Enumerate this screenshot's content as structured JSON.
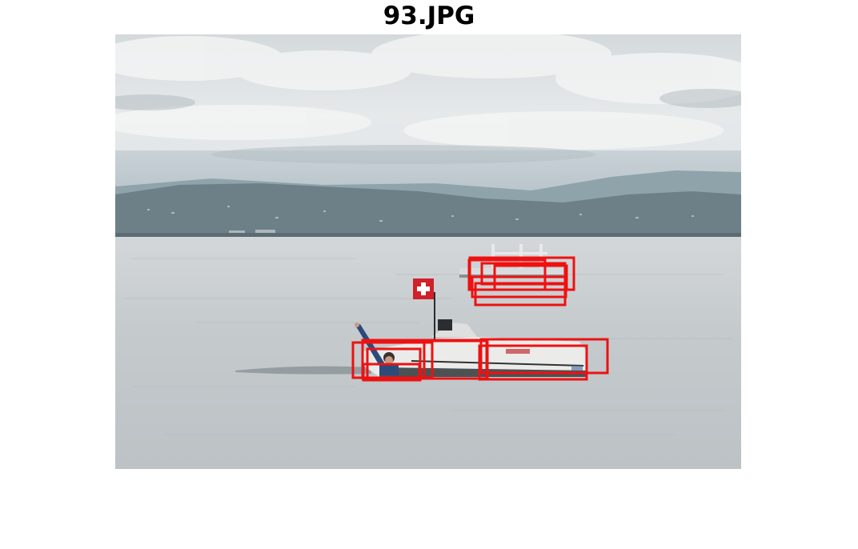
{
  "figure": {
    "title": "93.JPG"
  },
  "image": {
    "description_icon": "lake-boat-photo",
    "colors": {
      "sky": "#dfe3e5",
      "cloud": "#f2f3f3",
      "mountains": "#7f939b",
      "water": "#c8cdd0",
      "boat": "#e8e8e6",
      "flag": "#d0202a"
    }
  },
  "detections": {
    "box_color": "#ee1111",
    "count": 13
  }
}
